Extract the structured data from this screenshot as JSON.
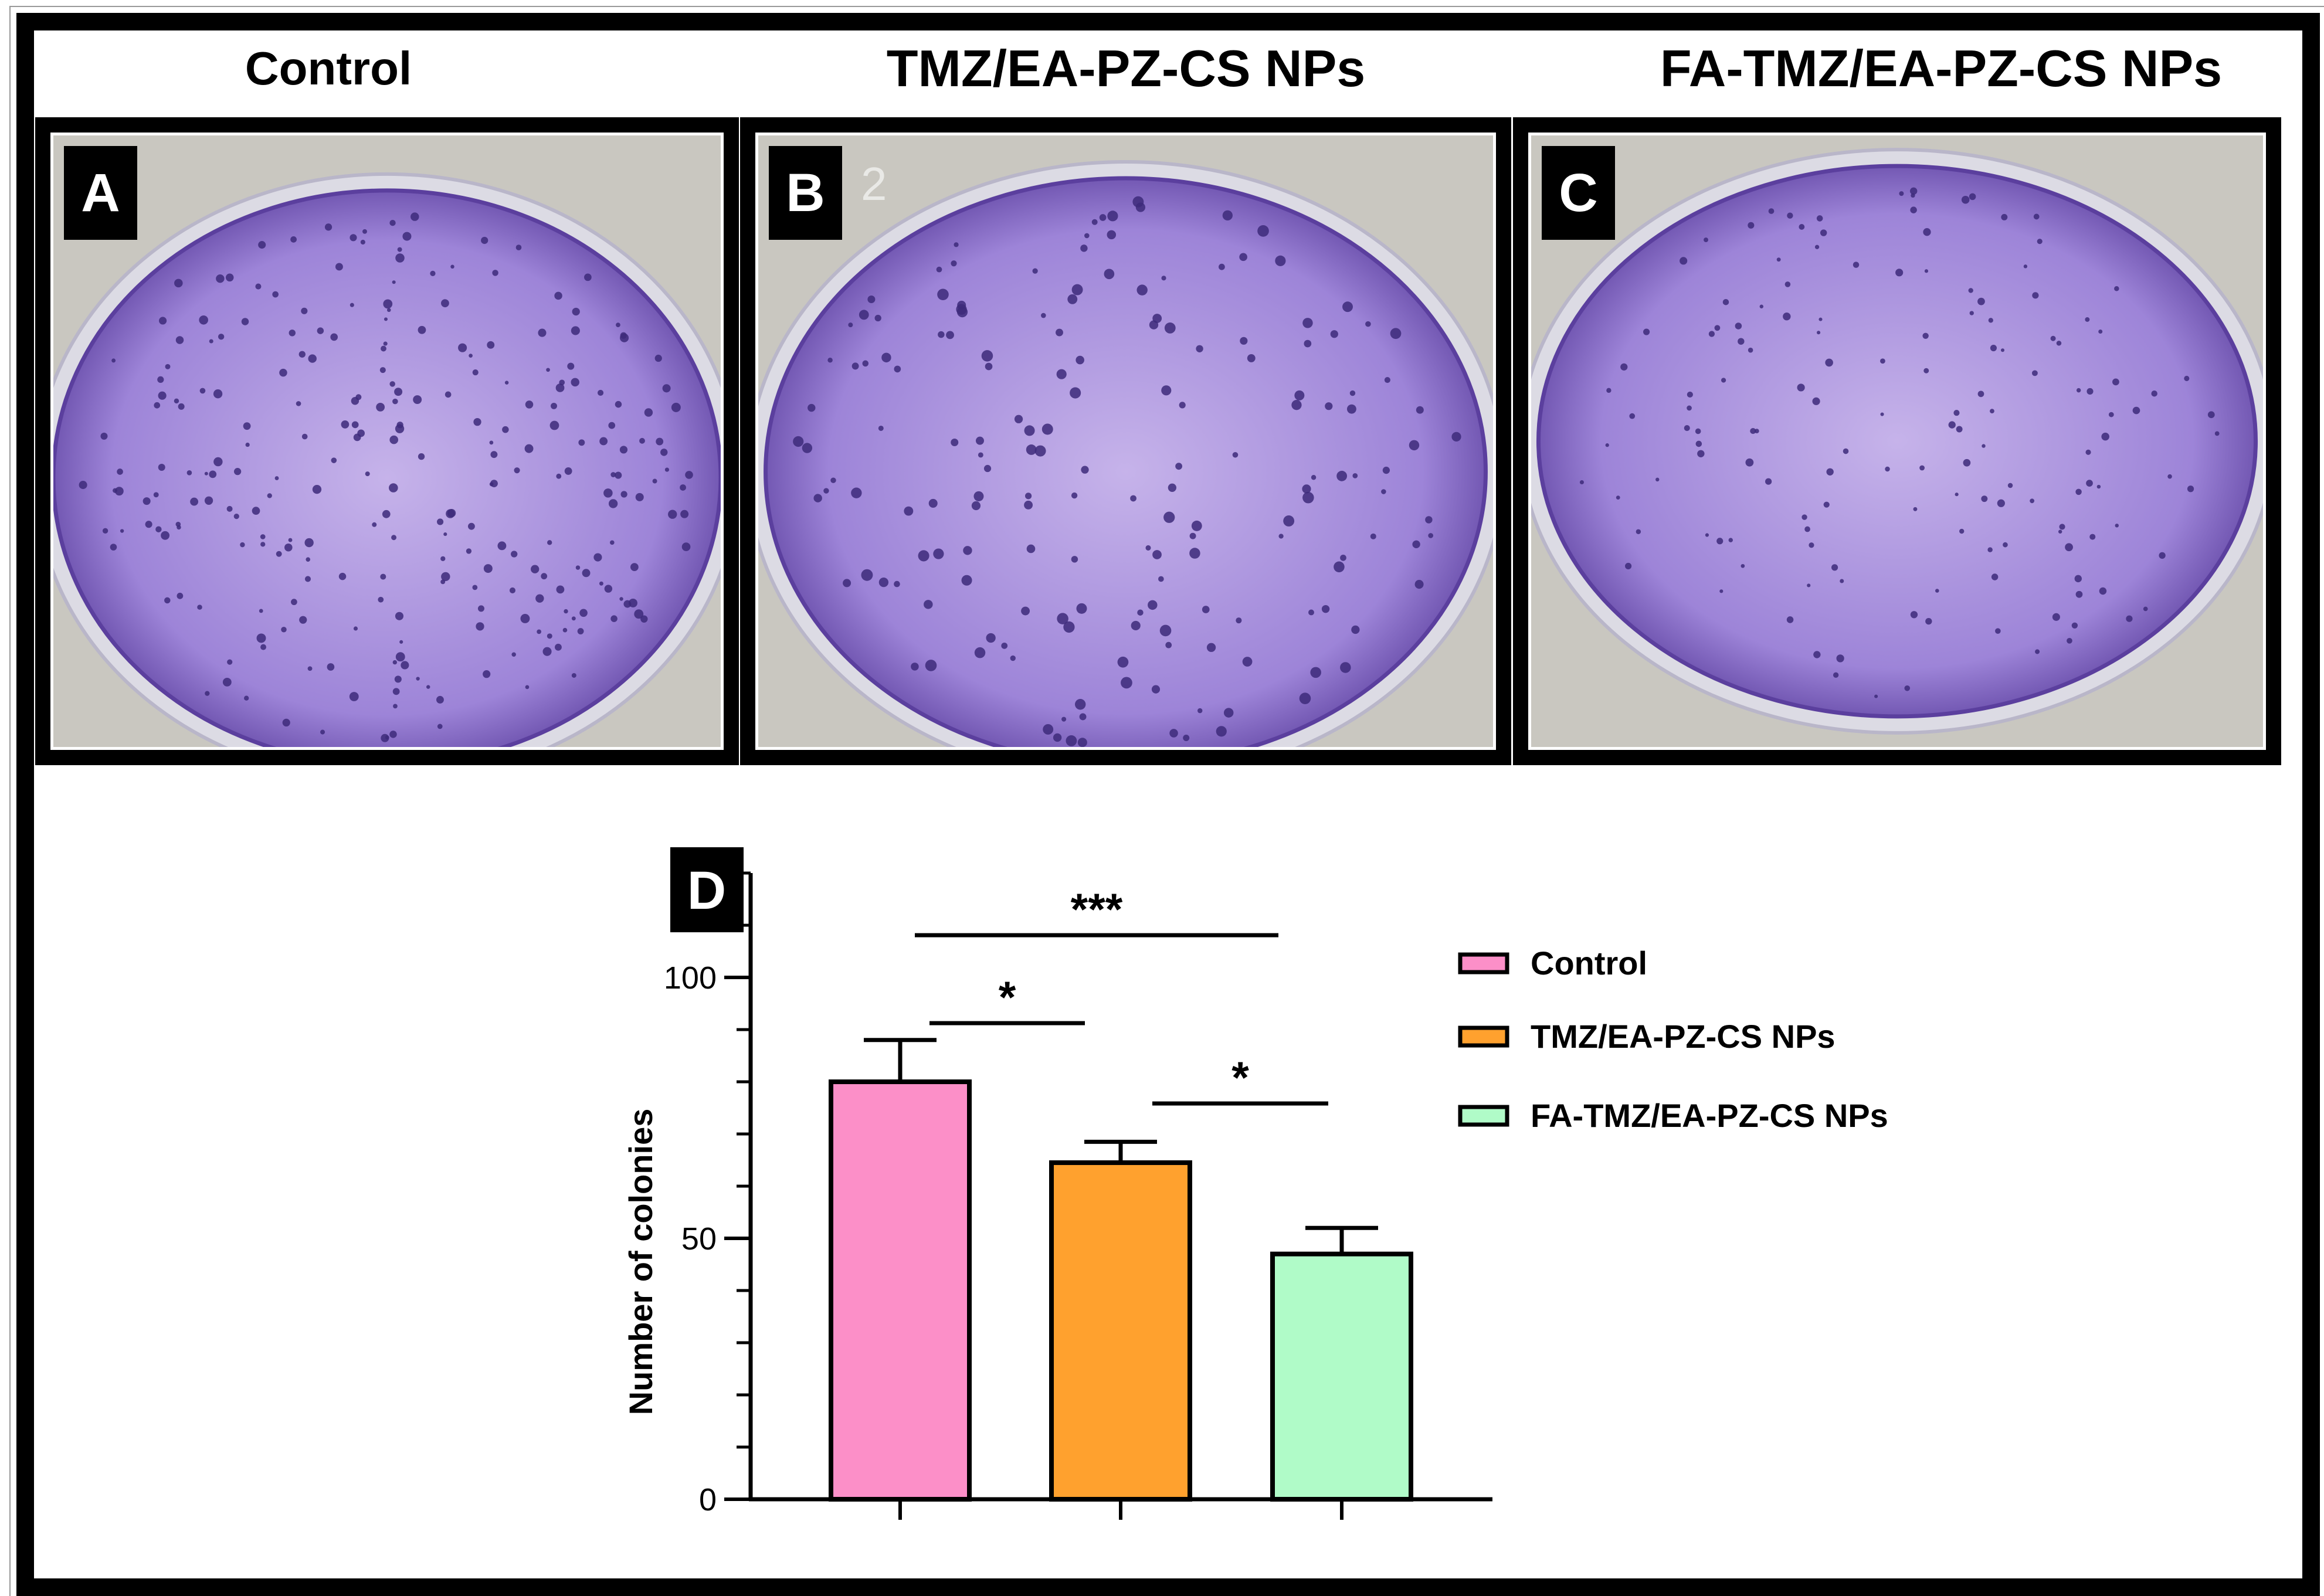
{
  "column_titles": [
    "Control",
    "TMZ/EA-PZ-CS NPs",
    "FA-TMZ/EA-PZ-CS NPs"
  ],
  "panels": [
    {
      "label": "A",
      "well_marker": ""
    },
    {
      "label": "B",
      "well_marker": "2"
    },
    {
      "label": "C",
      "well_marker": ""
    }
  ],
  "colors": {
    "stain_light": "#c6b3ea",
    "stain_mid": "#9d84d8",
    "stain_dark": "#5b3f9e",
    "colony": "#3d2a7a",
    "background_tray": "#c9c7c0"
  },
  "chart_data": {
    "type": "bar",
    "panel_label": "D",
    "categories": [
      "Control",
      "TMZ/EA-PZ-CS NPs",
      "FA-TMZ/EA-PZ-CS NPs"
    ],
    "values": [
      80,
      64.5,
      47
    ],
    "errors": [
      8,
      4,
      5
    ],
    "colors": [
      "#fc8fc8",
      "#ffa12e",
      "#b0fbc8"
    ],
    "ylabel": "Number of colonies",
    "xlabel": "",
    "ylim": [
      0,
      120
    ],
    "yticks": [
      0,
      50,
      100
    ],
    "legend": [
      "Control",
      "TMZ/EA-PZ-CS NPs",
      "FA-TMZ/EA-PZ-CS NPs"
    ],
    "legend_position": "right",
    "significance": [
      {
        "from": 0,
        "to": 2,
        "label": "***"
      },
      {
        "from": 0,
        "to": 1,
        "label": "*"
      },
      {
        "from": 1,
        "to": 2,
        "label": "*"
      }
    ]
  }
}
